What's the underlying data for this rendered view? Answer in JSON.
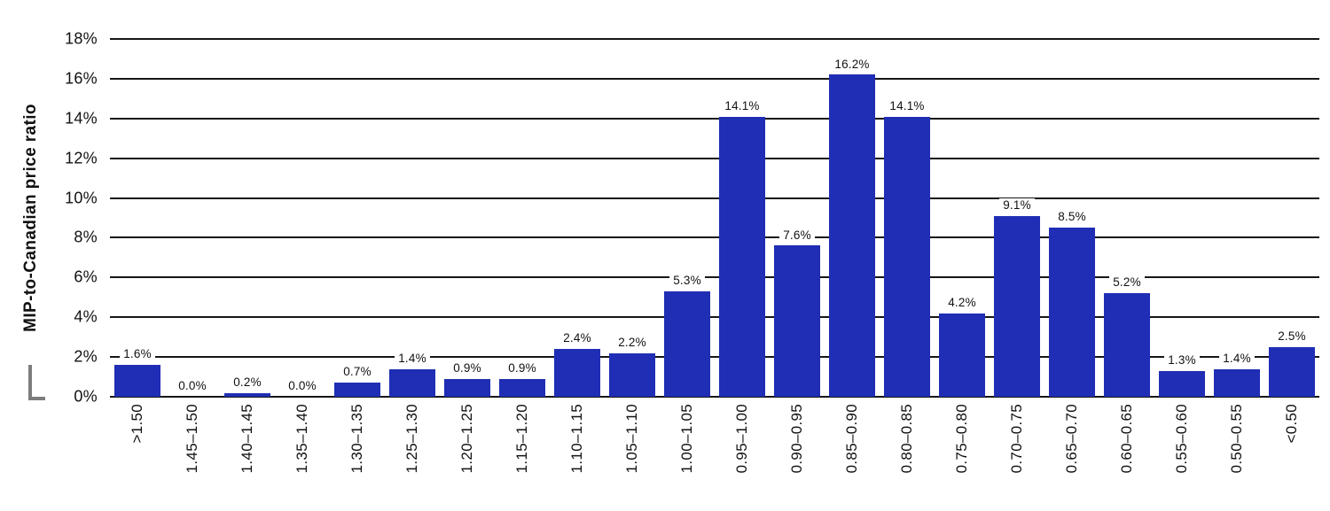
{
  "chart_data": {
    "type": "bar",
    "title": "",
    "xlabel": "",
    "ylabel": "MIP-to-Canadian price ratio",
    "ylim": [
      0,
      18
    ],
    "y_tick_step": 2,
    "y_tick_suffix": "%",
    "grid": true,
    "legend": "none",
    "bar_color": "#1f2eb4",
    "categories": [
      ">1.50",
      "1.45–1.50",
      "1.40–1.45",
      "1.35–1.40",
      "1.30–1.35",
      "1.25–1.30",
      "1.20–1.25",
      "1.15–1.20",
      "1.10–1.15",
      "1.05–1.10",
      "1.00–1.05",
      "0.95–1.00",
      "0.90–0.95",
      "0.85–0.90",
      "0.80–0.85",
      "0.75–0.80",
      "0.70–0.75",
      "0.65–0.70",
      "0.60–0.65",
      "0.55–0.60",
      "0.50–0.55",
      "<0.50"
    ],
    "values": [
      1.6,
      0.0,
      0.2,
      0.0,
      0.7,
      1.4,
      0.9,
      0.9,
      2.4,
      2.2,
      5.3,
      14.1,
      7.6,
      16.2,
      14.1,
      4.2,
      9.1,
      8.5,
      5.2,
      1.3,
      1.4,
      2.5
    ],
    "value_labels": [
      "1.6%",
      "0.0%",
      "0.2%",
      "0.0%",
      "0.7%",
      "1.4%",
      "0.9%",
      "0.9%",
      "2.4%",
      "2.2%",
      "5.3%",
      "14.1%",
      "7.6%",
      "16.2%",
      "14.1%",
      "4.2%",
      "9.1%",
      "8.5%",
      "5.2%",
      "1.3%",
      "1.4%",
      "2.5%"
    ]
  }
}
